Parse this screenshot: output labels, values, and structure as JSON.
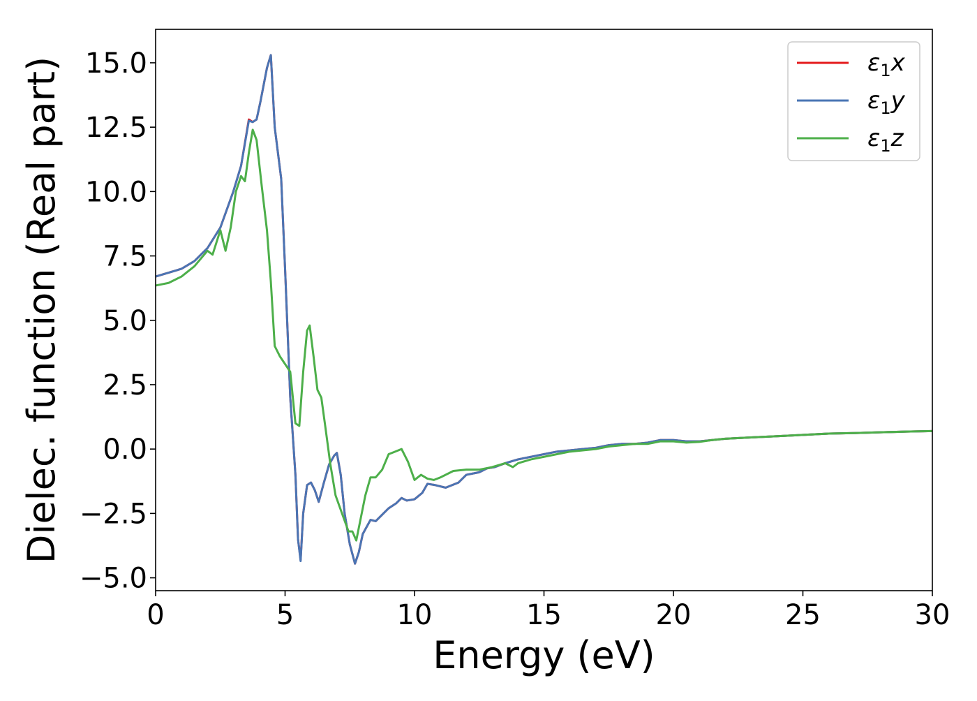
{
  "chart_data": {
    "type": "line",
    "title": "",
    "xlabel": "Energy (eV)",
    "ylabel": "Dielec. function (Real part)",
    "xlim": [
      0,
      30
    ],
    "ylim": [
      -5.5,
      16.3
    ],
    "xticks": [
      0,
      5,
      10,
      15,
      20,
      25,
      30
    ],
    "xtick_labels": [
      "0",
      "5",
      "10",
      "15",
      "20",
      "25",
      "30"
    ],
    "yticks": [
      -5.0,
      -2.5,
      0.0,
      2.5,
      5.0,
      7.5,
      10.0,
      12.5,
      15.0
    ],
    "ytick_labels": [
      "−5.0",
      "−2.5",
      "0.0",
      "2.5",
      "5.0",
      "7.5",
      "10.0",
      "12.5",
      "15.0"
    ],
    "grid": false,
    "legend_position": "top-right",
    "series": [
      {
        "name": "ε₁x",
        "name_main": "ε",
        "name_sub": "1",
        "name_var": "x",
        "color": "#e41a1c",
        "x": [
          0,
          1,
          1.5,
          2,
          2.5,
          3,
          3.3,
          3.6,
          3.75,
          3.9,
          4.05,
          4.3,
          4.45,
          4.6,
          4.85,
          5.0,
          5.2,
          5.4,
          5.5,
          5.6,
          5.7,
          5.85,
          6.0,
          6.15,
          6.3,
          6.5,
          6.7,
          6.9,
          7.0,
          7.15,
          7.3,
          7.5,
          7.7,
          7.85,
          8.0,
          8.3,
          8.5,
          8.8,
          9.0,
          9.3,
          9.5,
          9.7,
          10.0,
          10.3,
          10.5,
          10.8,
          11.2,
          11.7,
          12.0,
          12.5,
          12.8,
          13.1,
          13.5,
          14.0,
          14.5,
          15.0,
          15.5,
          16.0,
          16.5,
          17.0,
          17.5,
          18.0,
          18.5,
          19.0,
          19.5,
          20.0,
          20.5,
          21.0,
          21.5,
          22.0,
          23.0,
          24.0,
          25.0,
          26.0,
          27.0,
          28.0,
          29.0,
          30.0
        ],
        "values": [
          6.7,
          7.0,
          7.3,
          7.8,
          8.6,
          10.0,
          11.0,
          12.8,
          12.7,
          12.8,
          13.5,
          14.8,
          15.3,
          12.5,
          10.5,
          7.0,
          2.0,
          -1.0,
          -3.5,
          -4.3,
          -2.5,
          -1.4,
          -1.3,
          -1.6,
          -2.05,
          -1.3,
          -0.6,
          -0.25,
          -0.15,
          -1.0,
          -2.5,
          -3.7,
          -4.45,
          -4.0,
          -3.3,
          -2.75,
          -2.8,
          -2.5,
          -2.3,
          -2.1,
          -1.9,
          -2.0,
          -1.95,
          -1.7,
          -1.35,
          -1.4,
          -1.5,
          -1.3,
          -1.0,
          -0.9,
          -0.75,
          -0.7,
          -0.55,
          -0.4,
          -0.3,
          -0.2,
          -0.1,
          -0.05,
          0.0,
          0.05,
          0.15,
          0.2,
          0.2,
          0.25,
          0.35,
          0.35,
          0.3,
          0.3,
          0.35,
          0.4,
          0.45,
          0.5,
          0.55,
          0.6,
          0.62,
          0.65,
          0.68,
          0.7
        ]
      },
      {
        "name": "ε₁y",
        "name_main": "ε",
        "name_sub": "1",
        "name_var": "y",
        "color": "#4a75b4",
        "x": [
          0,
          1,
          1.5,
          2,
          2.5,
          3,
          3.3,
          3.6,
          3.75,
          3.9,
          4.05,
          4.3,
          4.45,
          4.6,
          4.85,
          5.0,
          5.2,
          5.4,
          5.5,
          5.6,
          5.7,
          5.85,
          6.0,
          6.15,
          6.3,
          6.5,
          6.7,
          6.9,
          7.0,
          7.15,
          7.3,
          7.5,
          7.7,
          7.85,
          8.0,
          8.3,
          8.5,
          8.8,
          9.0,
          9.3,
          9.5,
          9.7,
          10.0,
          10.3,
          10.5,
          10.8,
          11.2,
          11.7,
          12.0,
          12.5,
          12.8,
          13.1,
          13.5,
          14.0,
          14.5,
          15.0,
          15.5,
          16.0,
          16.5,
          17.0,
          17.5,
          18.0,
          18.5,
          19.0,
          19.5,
          20.0,
          20.5,
          21.0,
          21.5,
          22.0,
          23.0,
          24.0,
          25.0,
          26.0,
          27.0,
          28.0,
          29.0,
          30.0
        ],
        "values": [
          6.7,
          7.0,
          7.3,
          7.8,
          8.6,
          10.0,
          11.0,
          12.75,
          12.7,
          12.8,
          13.5,
          14.8,
          15.3,
          12.5,
          10.5,
          7.0,
          2.0,
          -1.0,
          -3.5,
          -4.35,
          -2.5,
          -1.4,
          -1.3,
          -1.6,
          -2.05,
          -1.3,
          -0.6,
          -0.25,
          -0.15,
          -1.0,
          -2.5,
          -3.7,
          -4.45,
          -4.0,
          -3.3,
          -2.75,
          -2.8,
          -2.5,
          -2.3,
          -2.1,
          -1.9,
          -2.0,
          -1.95,
          -1.7,
          -1.35,
          -1.4,
          -1.5,
          -1.3,
          -1.0,
          -0.9,
          -0.75,
          -0.7,
          -0.55,
          -0.4,
          -0.3,
          -0.2,
          -0.1,
          -0.05,
          0.0,
          0.05,
          0.15,
          0.2,
          0.2,
          0.25,
          0.35,
          0.35,
          0.3,
          0.3,
          0.35,
          0.4,
          0.45,
          0.5,
          0.55,
          0.6,
          0.62,
          0.65,
          0.68,
          0.7
        ]
      },
      {
        "name": "ε₁z",
        "name_main": "ε",
        "name_sub": "1",
        "name_var": "z",
        "color": "#4daf4a",
        "x": [
          0,
          0.5,
          1.0,
          1.5,
          2.0,
          2.2,
          2.5,
          2.7,
          2.9,
          3.1,
          3.3,
          3.45,
          3.6,
          3.75,
          3.9,
          4.1,
          4.3,
          4.45,
          4.6,
          4.8,
          5.0,
          5.2,
          5.4,
          5.55,
          5.7,
          5.85,
          5.95,
          6.1,
          6.25,
          6.4,
          6.55,
          6.75,
          6.95,
          7.2,
          7.45,
          7.6,
          7.75,
          7.9,
          8.1,
          8.3,
          8.5,
          8.75,
          9.0,
          9.25,
          9.5,
          9.75,
          10.0,
          10.25,
          10.5,
          10.75,
          11.0,
          11.5,
          12.0,
          12.5,
          13.0,
          13.5,
          13.8,
          14.0,
          14.5,
          15.0,
          15.5,
          16.0,
          16.5,
          17.0,
          17.5,
          18.0,
          18.5,
          19.0,
          19.5,
          20.0,
          20.5,
          21.0,
          21.5,
          22.0,
          23.0,
          24.0,
          25.0,
          26.0,
          27.0,
          28.0,
          29.0,
          30.0
        ],
        "values": [
          6.35,
          6.45,
          6.7,
          7.1,
          7.7,
          7.55,
          8.5,
          7.7,
          8.6,
          10.0,
          10.6,
          10.4,
          11.5,
          12.4,
          12.0,
          10.2,
          8.5,
          6.5,
          4.0,
          3.6,
          3.3,
          3.0,
          1.0,
          0.9,
          3.0,
          4.6,
          4.8,
          3.6,
          2.3,
          2.0,
          0.9,
          -0.6,
          -1.8,
          -2.5,
          -3.2,
          -3.2,
          -3.55,
          -2.8,
          -1.8,
          -1.1,
          -1.1,
          -0.8,
          -0.2,
          -0.1,
          0.0,
          -0.5,
          -1.2,
          -1.0,
          -1.15,
          -1.2,
          -1.1,
          -0.85,
          -0.8,
          -0.8,
          -0.7,
          -0.55,
          -0.7,
          -0.55,
          -0.4,
          -0.3,
          -0.2,
          -0.1,
          -0.05,
          0.0,
          0.1,
          0.15,
          0.2,
          0.2,
          0.3,
          0.3,
          0.25,
          0.28,
          0.35,
          0.4,
          0.45,
          0.5,
          0.55,
          0.6,
          0.62,
          0.65,
          0.68,
          0.7
        ]
      }
    ]
  }
}
